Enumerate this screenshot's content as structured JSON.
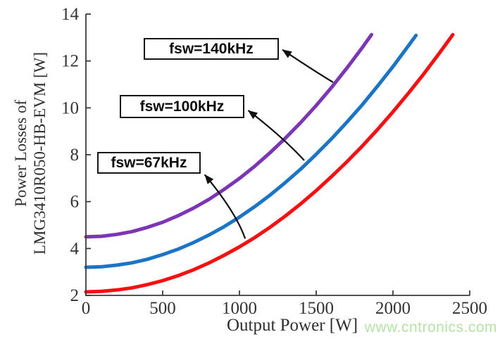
{
  "watermark": {
    "text": "www.cntronics.com",
    "color": "#b6e2a8"
  },
  "chart_data": {
    "type": "line",
    "title": "",
    "xlabel": "Output Power [W]",
    "ylabel_lines": [
      "Power Losses of",
      "LMG3410R050-HB-EVM [W]"
    ],
    "xlim": [
      0,
      2500
    ],
    "ylim": [
      2,
      14
    ],
    "xticks": [
      0,
      500,
      1000,
      1500,
      2000,
      2500
    ],
    "yticks": [
      2,
      4,
      6,
      8,
      10,
      12,
      14
    ],
    "grid": false,
    "legend_position": "none",
    "axis_color": "#3d3d3d",
    "tick_label_color": "#333333",
    "series": [
      {
        "name": "fsw=67kHz",
        "color": "#f51112",
        "points": [
          [
            0,
            2.15
          ],
          [
            100,
            2.17
          ],
          [
            200,
            2.23
          ],
          [
            300,
            2.32
          ],
          [
            400,
            2.46
          ],
          [
            500,
            2.63
          ],
          [
            600,
            2.84
          ],
          [
            700,
            3.09
          ],
          [
            800,
            3.38
          ],
          [
            900,
            3.71
          ],
          [
            1000,
            4.07
          ],
          [
            1100,
            4.47
          ],
          [
            1200,
            4.91
          ],
          [
            1300,
            5.39
          ],
          [
            1400,
            5.91
          ],
          [
            1500,
            6.47
          ],
          [
            1600,
            7.07
          ],
          [
            1700,
            7.7
          ],
          [
            1800,
            8.37
          ],
          [
            1900,
            9.08
          ],
          [
            2000,
            9.83
          ],
          [
            2100,
            10.62
          ],
          [
            2200,
            11.44
          ],
          [
            2300,
            12.31
          ],
          [
            2390,
            13.12
          ]
        ]
      },
      {
        "name": "fsw=100kHz",
        "color": "#1b74c5",
        "points": [
          [
            0,
            3.2
          ],
          [
            100,
            3.22
          ],
          [
            200,
            3.29
          ],
          [
            300,
            3.39
          ],
          [
            400,
            3.54
          ],
          [
            500,
            3.74
          ],
          [
            600,
            3.97
          ],
          [
            700,
            4.25
          ],
          [
            800,
            4.57
          ],
          [
            900,
            4.93
          ],
          [
            1000,
            5.34
          ],
          [
            1100,
            5.79
          ],
          [
            1200,
            6.28
          ],
          [
            1300,
            6.82
          ],
          [
            1400,
            7.39
          ],
          [
            1500,
            8.02
          ],
          [
            1600,
            8.68
          ],
          [
            1700,
            9.39
          ],
          [
            1800,
            10.13
          ],
          [
            1900,
            10.93
          ],
          [
            2000,
            11.76
          ],
          [
            2100,
            12.64
          ],
          [
            2150,
            13.09
          ]
        ]
      },
      {
        "name": "fsw=140kHz",
        "color": "#7b35b5",
        "points": [
          [
            0,
            4.5
          ],
          [
            100,
            4.52
          ],
          [
            200,
            4.6
          ],
          [
            300,
            4.72
          ],
          [
            400,
            4.9
          ],
          [
            500,
            5.12
          ],
          [
            600,
            5.4
          ],
          [
            700,
            5.72
          ],
          [
            800,
            6.09
          ],
          [
            900,
            6.52
          ],
          [
            1000,
            6.99
          ],
          [
            1100,
            7.51
          ],
          [
            1200,
            8.09
          ],
          [
            1300,
            8.71
          ],
          [
            1400,
            9.38
          ],
          [
            1500,
            10.1
          ],
          [
            1600,
            10.87
          ],
          [
            1700,
            11.7
          ],
          [
            1800,
            12.57
          ],
          [
            1860,
            13.12
          ]
        ]
      }
    ],
    "annotations": [
      {
        "label": "fsw=140kHz",
        "box": {
          "x1": 376,
          "y1": 12.98,
          "x2": 1257,
          "y2": 12.05
        },
        "arrow": {
          "from": [
            1610,
            11.09
          ],
          "ctrl": [
            1495,
            11.54
          ],
          "to": [
            1280,
            12.48
          ]
        }
      },
      {
        "label": "fsw=100kHz",
        "box": {
          "x1": 220,
          "y1": 10.55,
          "x2": 1032,
          "y2": 9.56
        },
        "arrow": {
          "from": [
            1422,
            7.76
          ],
          "ctrl": [
            1280,
            8.77
          ],
          "to": [
            1057,
            9.89
          ]
        }
      },
      {
        "label": "fsw=67kHz",
        "box": {
          "x1": 73,
          "y1": 8.12,
          "x2": 748,
          "y2": 7.19
        },
        "arrow": {
          "from": [
            1037,
            4.42
          ],
          "ctrl": [
            977,
            5.55
          ],
          "to": [
            774,
            7.15
          ]
        }
      }
    ]
  }
}
